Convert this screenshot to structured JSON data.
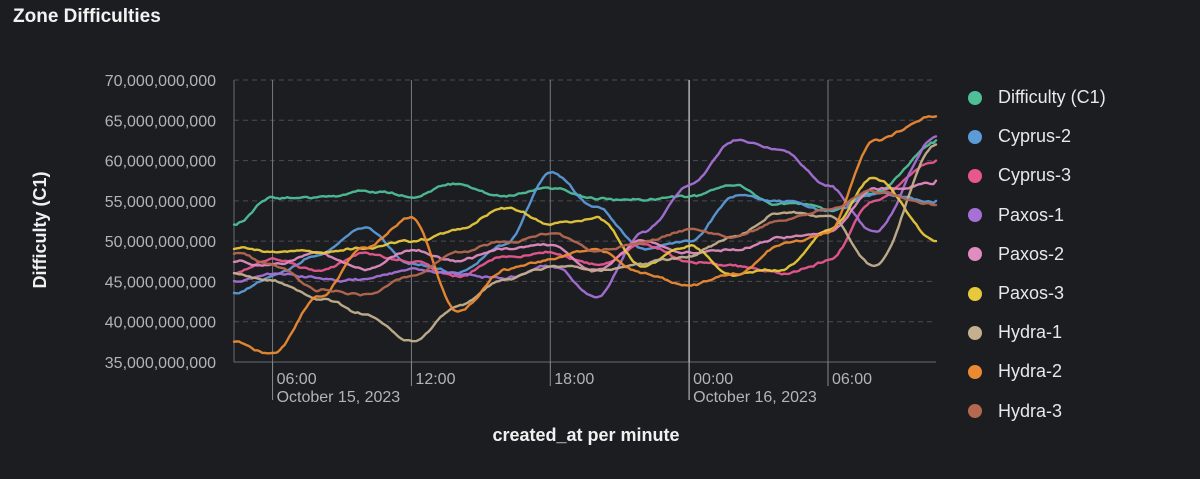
{
  "panel": {
    "title": "Zone Difficulties"
  },
  "chart_data": {
    "type": "line",
    "title": "",
    "xlabel": "created_at per minute",
    "ylabel": "Difficulty (C1)",
    "ylim": [
      35000000000,
      70000000000
    ],
    "y_ticks": [
      {
        "value": 35000000000,
        "label": "35,000,000,000"
      },
      {
        "value": 40000000000,
        "label": "40,000,000,000"
      },
      {
        "value": 45000000000,
        "label": "45,000,000,000"
      },
      {
        "value": 50000000000,
        "label": "50,000,000,000"
      },
      {
        "value": 55000000000,
        "label": "55,000,000,000"
      },
      {
        "value": 60000000000,
        "label": "60,000,000,000"
      },
      {
        "value": 65000000000,
        "label": "65,000,000,000"
      },
      {
        "value": 70000000000,
        "label": "70,000,000,000"
      }
    ],
    "x_range": [
      "2023-10-15 04:20",
      "2023-10-16 10:40"
    ],
    "x_ticks": [
      {
        "time": "2023-10-15 06:00",
        "label": "06:00",
        "sublabel": "October 15, 2023"
      },
      {
        "time": "2023-10-15 12:00",
        "label": "12:00",
        "sublabel": ""
      },
      {
        "time": "2023-10-15 18:00",
        "label": "18:00",
        "sublabel": ""
      },
      {
        "time": "2023-10-16 00:00",
        "label": "00:00",
        "sublabel": "October 16, 2023"
      },
      {
        "time": "2023-10-16 06:00",
        "label": "06:00",
        "sublabel": ""
      }
    ],
    "grid": true,
    "legend_position": "right",
    "x": [
      "2023-10-15 04:20",
      "2023-10-15 06:00",
      "2023-10-15 08:00",
      "2023-10-15 10:00",
      "2023-10-15 12:00",
      "2023-10-15 14:00",
      "2023-10-15 16:00",
      "2023-10-15 18:00",
      "2023-10-15 20:00",
      "2023-10-15 22:00",
      "2023-10-16 00:00",
      "2023-10-16 02:00",
      "2023-10-16 04:00",
      "2023-10-16 06:00",
      "2023-10-16 08:00",
      "2023-10-16 10:40"
    ],
    "series": [
      {
        "name": "Difficulty (C1)",
        "color": "#4fbf98",
        "values": [
          52000000000,
          55500000000,
          55200000000,
          56000000000,
          55500000000,
          57000000000,
          55500000000,
          56500000000,
          55000000000,
          55200000000,
          55500000000,
          56800000000,
          54500000000,
          53800000000,
          56000000000,
          62500000000
        ]
      },
      {
        "name": "Cyprus-2",
        "color": "#5b9bd8",
        "values": [
          43500000000,
          46000000000,
          48500000000,
          51500000000,
          47000000000,
          46000000000,
          49500000000,
          58500000000,
          54000000000,
          49000000000,
          50000000000,
          55500000000,
          55000000000,
          54000000000,
          56000000000,
          55000000000
        ]
      },
      {
        "name": "Cyprus-3",
        "color": "#e8578f",
        "values": [
          46000000000,
          48000000000,
          46500000000,
          48500000000,
          47500000000,
          45500000000,
          48000000000,
          48500000000,
          47000000000,
          49500000000,
          47500000000,
          47000000000,
          46000000000,
          47500000000,
          55000000000,
          60000000000
        ]
      },
      {
        "name": "Paxos-1",
        "color": "#a670d6",
        "values": [
          45000000000,
          46000000000,
          45500000000,
          45500000000,
          46500000000,
          46000000000,
          45500000000,
          47000000000,
          43000000000,
          51000000000,
          57000000000,
          62500000000,
          61500000000,
          57000000000,
          51000000000,
          63000000000
        ]
      },
      {
        "name": "Paxos-2",
        "color": "#e08cbf",
        "values": [
          47500000000,
          47000000000,
          48500000000,
          46500000000,
          49000000000,
          47500000000,
          49000000000,
          49500000000,
          46500000000,
          50000000000,
          48500000000,
          49000000000,
          50500000000,
          51000000000,
          56500000000,
          57500000000
        ]
      },
      {
        "name": "Paxos-3",
        "color": "#e8c93c",
        "values": [
          49000000000,
          48500000000,
          48500000000,
          49000000000,
          50000000000,
          51500000000,
          54500000000,
          52500000000,
          53000000000,
          47000000000,
          49500000000,
          46000000000,
          46500000000,
          51500000000,
          58000000000,
          50000000000
        ]
      },
      {
        "name": "Hydra-1",
        "color": "#c4b08e",
        "values": [
          46000000000,
          45000000000,
          43000000000,
          41000000000,
          37500000000,
          42000000000,
          45500000000,
          47000000000,
          46500000000,
          47500000000,
          48000000000,
          50500000000,
          53500000000,
          53000000000,
          46500000000,
          62000000000
        ]
      },
      {
        "name": "Hydra-2",
        "color": "#ec8a34",
        "values": [
          37500000000,
          36000000000,
          43000000000,
          49000000000,
          53000000000,
          41000000000,
          46500000000,
          48000000000,
          49000000000,
          46000000000,
          44500000000,
          46000000000,
          49500000000,
          51000000000,
          62500000000,
          65500000000
        ]
      },
      {
        "name": "Hydra-3",
        "color": "#b46850",
        "values": [
          48500000000,
          47000000000,
          44000000000,
          43500000000,
          45500000000,
          48500000000,
          50000000000,
          51000000000,
          49000000000,
          50000000000,
          51500000000,
          50500000000,
          52500000000,
          54000000000,
          56000000000,
          54500000000
        ]
      }
    ]
  }
}
